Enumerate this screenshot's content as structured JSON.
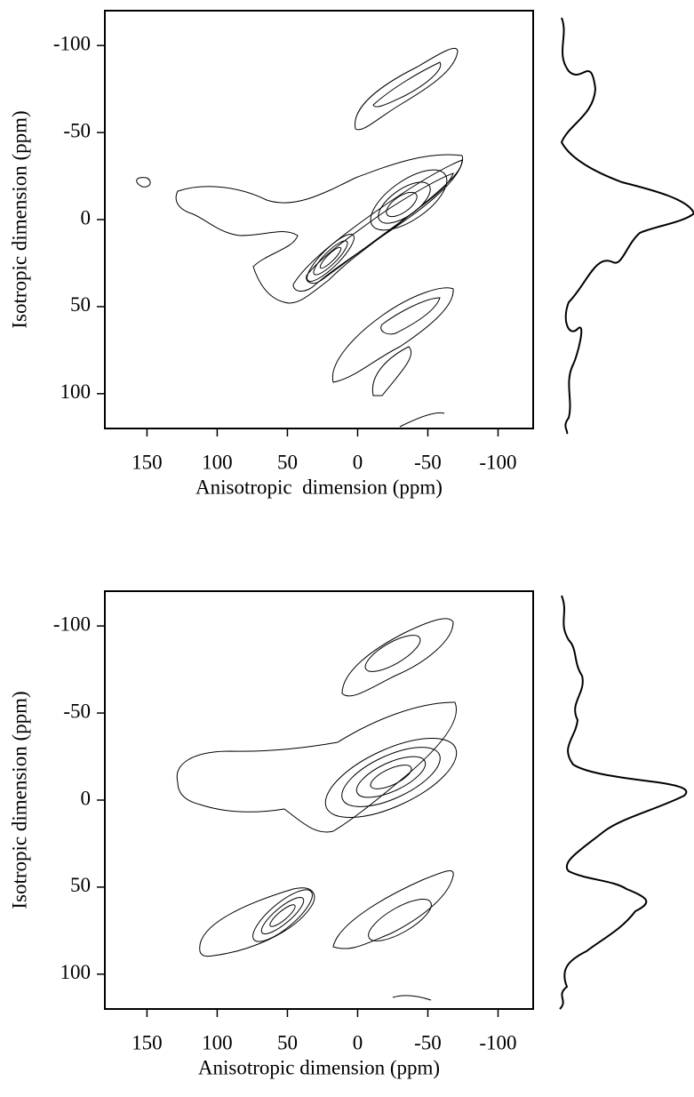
{
  "chart_data": [
    {
      "type": "contour",
      "x_label": "Anisotropic  dimension (ppm)",
      "y_label": "Isotropic dimension (ppm)",
      "xlim": [
        180,
        -125
      ],
      "xticks": [
        150,
        100,
        50,
        0,
        -50,
        -100
      ],
      "ylim": [
        120,
        -120
      ],
      "yticks": [
        -100,
        -50,
        0,
        50,
        100
      ]
    },
    {
      "type": "contour",
      "x_label": "Anisotropic dimension (ppm)",
      "y_label": "Isotropic dimension (ppm)",
      "xlim": [
        180,
        -125
      ],
      "xticks": [
        150,
        100,
        50,
        0,
        -50,
        -100
      ],
      "ylim": [
        120,
        -120
      ],
      "yticks": [
        -100,
        -50,
        0,
        50,
        100
      ]
    }
  ]
}
